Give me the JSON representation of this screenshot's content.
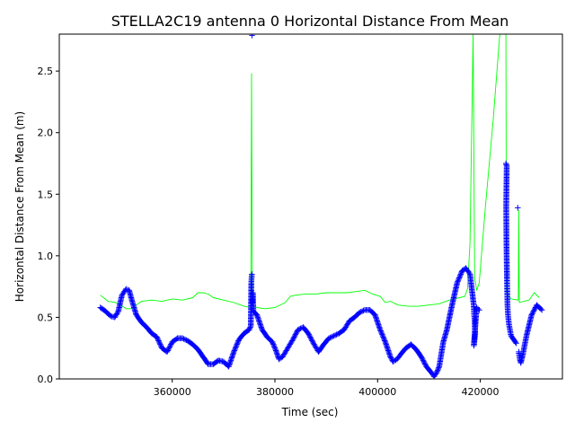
{
  "chart_data": {
    "type": "scatter",
    "title": "STELLA2C19 antenna 0 Horizontal Distance From Mean",
    "xlabel": "Time (sec)",
    "ylabel": "Horizontal Distance From Mean (m)",
    "xlim": [
      338000,
      436000
    ],
    "ylim": [
      0,
      2.8
    ],
    "x_ticks": [
      {
        "value": 360000,
        "label": "360000"
      },
      {
        "value": 380000,
        "label": "380000"
      },
      {
        "value": 400000,
        "label": "400000"
      },
      {
        "value": 420000,
        "label": "420000"
      }
    ],
    "y_ticks": [
      {
        "value": 0.0,
        "label": "0.0"
      },
      {
        "value": 0.5,
        "label": "0.5"
      },
      {
        "value": 1.0,
        "label": "1.0"
      },
      {
        "value": 1.5,
        "label": "1.5"
      },
      {
        "value": 2.0,
        "label": "2.0"
      },
      {
        "value": 2.5,
        "label": "2.5"
      }
    ],
    "grid": false,
    "legend": "none",
    "series": [
      {
        "style": "line",
        "color": "#00ff00",
        "points": [
          [
            346000,
            0.68
          ],
          [
            347500,
            0.63
          ],
          [
            349000,
            0.62
          ],
          [
            350000,
            0.6
          ],
          [
            351000,
            0.57
          ],
          [
            352000,
            0.57
          ],
          [
            353000,
            0.6
          ],
          [
            354000,
            0.63
          ],
          [
            356000,
            0.64
          ],
          [
            358000,
            0.63
          ],
          [
            360000,
            0.65
          ],
          [
            362000,
            0.64
          ],
          [
            364000,
            0.66
          ],
          [
            365000,
            0.7
          ],
          [
            366000,
            0.7
          ],
          [
            367000,
            0.69
          ],
          [
            368000,
            0.66
          ],
          [
            370000,
            0.64
          ],
          [
            372000,
            0.62
          ],
          [
            374000,
            0.59
          ],
          [
            375300,
            0.58
          ],
          [
            375450,
            2.48
          ],
          [
            375600,
            0.6
          ],
          [
            376500,
            0.58
          ],
          [
            378000,
            0.57
          ],
          [
            380000,
            0.58
          ],
          [
            382000,
            0.62
          ],
          [
            383000,
            0.67
          ],
          [
            384000,
            0.68
          ],
          [
            386000,
            0.69
          ],
          [
            388000,
            0.69
          ],
          [
            390000,
            0.7
          ],
          [
            392000,
            0.7
          ],
          [
            394000,
            0.7
          ],
          [
            396000,
            0.71
          ],
          [
            397500,
            0.72
          ],
          [
            399000,
            0.69
          ],
          [
            400500,
            0.67
          ],
          [
            401500,
            0.62
          ],
          [
            402500,
            0.63
          ],
          [
            404000,
            0.6
          ],
          [
            406000,
            0.59
          ],
          [
            408000,
            0.59
          ],
          [
            410000,
            0.6
          ],
          [
            412000,
            0.61
          ],
          [
            414000,
            0.64
          ],
          [
            416000,
            0.66
          ],
          [
            417000,
            0.67
          ],
          [
            417500,
            0.73
          ],
          [
            418000,
            1.1
          ],
          [
            418600,
            2.8
          ],
          [
            418900,
            0.82
          ],
          [
            419300,
            0.72
          ],
          [
            419800,
            0.78
          ],
          [
            421000,
            1.4
          ],
          [
            422500,
            2.1
          ],
          [
            423800,
            2.8
          ],
          [
            425000,
            2.8
          ],
          [
            425100,
            0.7
          ],
          [
            426000,
            0.65
          ],
          [
            427400,
            0.64
          ],
          [
            427500,
            1.37
          ],
          [
            427600,
            0.62
          ],
          [
            428500,
            0.63
          ],
          [
            429500,
            0.64
          ],
          [
            430500,
            0.7
          ],
          [
            431500,
            0.66
          ]
        ]
      },
      {
        "style": "markers",
        "marker": "+",
        "color": "#0000ff",
        "points": [
          [
            346000,
            0.58
          ],
          [
            347000,
            0.55
          ],
          [
            348000,
            0.51
          ],
          [
            348800,
            0.5
          ],
          [
            349500,
            0.55
          ],
          [
            350200,
            0.68
          ],
          [
            351000,
            0.73
          ],
          [
            351600,
            0.72
          ],
          [
            352200,
            0.63
          ],
          [
            353000,
            0.52
          ],
          [
            354000,
            0.46
          ],
          [
            355000,
            0.42
          ],
          [
            356000,
            0.37
          ],
          [
            357000,
            0.34
          ],
          [
            358000,
            0.25
          ],
          [
            359000,
            0.22
          ],
          [
            360000,
            0.3
          ],
          [
            361000,
            0.33
          ],
          [
            362000,
            0.33
          ],
          [
            363000,
            0.31
          ],
          [
            364000,
            0.28
          ],
          [
            365000,
            0.24
          ],
          [
            366000,
            0.18
          ],
          [
            367000,
            0.12
          ],
          [
            368000,
            0.12
          ],
          [
            369000,
            0.15
          ],
          [
            370000,
            0.14
          ],
          [
            371000,
            0.1
          ],
          [
            372000,
            0.22
          ],
          [
            373000,
            0.32
          ],
          [
            374000,
            0.37
          ],
          [
            375000,
            0.4
          ],
          [
            375300,
            0.43
          ],
          [
            375400,
            0.78
          ],
          [
            375500,
            0.85
          ],
          [
            375550,
            2.79
          ],
          [
            375600,
            0.62
          ],
          [
            375700,
            0.7
          ],
          [
            375800,
            0.55
          ],
          [
            376500,
            0.52
          ],
          [
            377500,
            0.4
          ],
          [
            378500,
            0.34
          ],
          [
            379500,
            0.3
          ],
          [
            380200,
            0.23
          ],
          [
            380800,
            0.16
          ],
          [
            381500,
            0.18
          ],
          [
            382500,
            0.25
          ],
          [
            383500,
            0.32
          ],
          [
            384500,
            0.4
          ],
          [
            385500,
            0.42
          ],
          [
            386500,
            0.37
          ],
          [
            387500,
            0.29
          ],
          [
            388500,
            0.22
          ],
          [
            389500,
            0.28
          ],
          [
            390500,
            0.33
          ],
          [
            391500,
            0.35
          ],
          [
            392500,
            0.37
          ],
          [
            393500,
            0.4
          ],
          [
            394500,
            0.47
          ],
          [
            395500,
            0.5
          ],
          [
            396500,
            0.54
          ],
          [
            397500,
            0.56
          ],
          [
            398500,
            0.56
          ],
          [
            399500,
            0.52
          ],
          [
            400500,
            0.4
          ],
          [
            401500,
            0.3
          ],
          [
            402500,
            0.18
          ],
          [
            403000,
            0.14
          ],
          [
            403800,
            0.16
          ],
          [
            404500,
            0.2
          ],
          [
            405500,
            0.25
          ],
          [
            406500,
            0.28
          ],
          [
            407500,
            0.24
          ],
          [
            408500,
            0.18
          ],
          [
            409500,
            0.1
          ],
          [
            410500,
            0.05
          ],
          [
            411000,
            0.02
          ],
          [
            411500,
            0.05
          ],
          [
            412000,
            0.1
          ],
          [
            412800,
            0.3
          ],
          [
            413500,
            0.4
          ],
          [
            414500,
            0.6
          ],
          [
            415500,
            0.78
          ],
          [
            416500,
            0.88
          ],
          [
            417200,
            0.9
          ],
          [
            418000,
            0.85
          ],
          [
            418700,
            0.61
          ],
          [
            418800,
            0.53
          ],
          [
            418900,
            0.47
          ],
          [
            419000,
            0.37
          ],
          [
            418750,
            0.27
          ],
          [
            419300,
            0.58
          ],
          [
            419800,
            0.56
          ],
          [
            425000,
            1.75
          ],
          [
            425150,
            1.73
          ],
          [
            425050,
            1.4
          ],
          [
            425100,
            1.11
          ],
          [
            425200,
            0.82
          ],
          [
            425250,
            0.7
          ],
          [
            425300,
            0.6
          ],
          [
            425400,
            0.52
          ],
          [
            425600,
            0.44
          ],
          [
            426000,
            0.35
          ],
          [
            427000,
            0.29
          ],
          [
            427300,
            1.39
          ],
          [
            427500,
            0.22
          ],
          [
            427700,
            0.16
          ],
          [
            427900,
            0.13
          ],
          [
            428300,
            0.2
          ],
          [
            429000,
            0.35
          ],
          [
            430000,
            0.52
          ],
          [
            431000,
            0.6
          ],
          [
            432000,
            0.56
          ]
        ]
      }
    ]
  }
}
